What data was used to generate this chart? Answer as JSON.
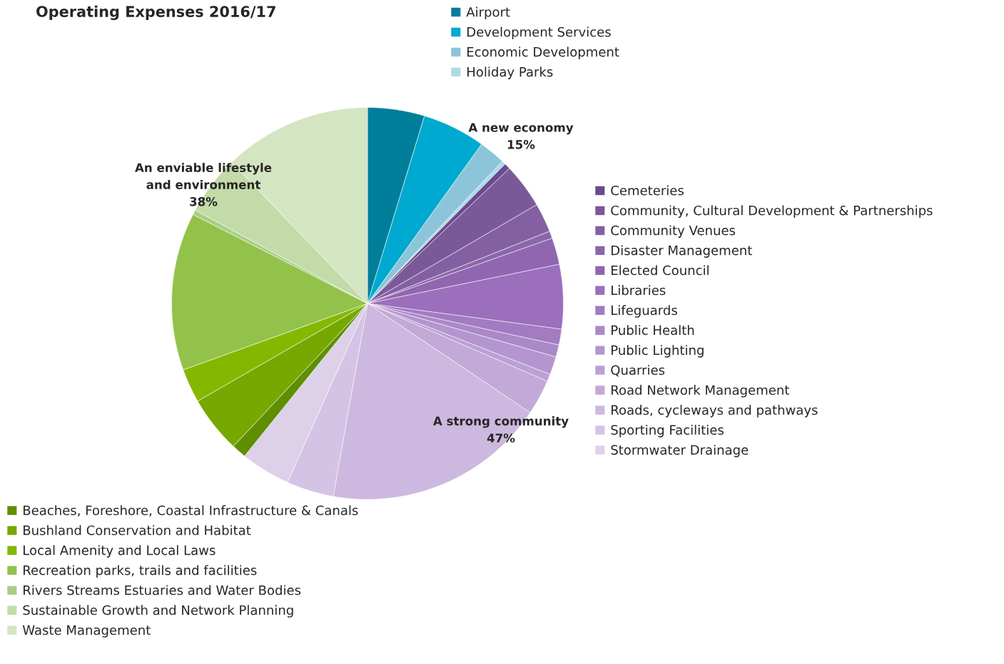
{
  "chart_data": {
    "type": "pie",
    "title": "Operating Expenses 2016/17",
    "categories": [
      "Airport",
      "Development Services",
      "Economic Development",
      "Holiday Parks",
      "Cemeteries",
      "Community, Cultural Development & Partnerships",
      "Community Venues",
      "Disaster Management",
      "Elected Council",
      "Libraries",
      "Lifeguards",
      "Public Health",
      "Public Lighting",
      "Quarries",
      "Road Network Management",
      "Roads, cycleways and pathways",
      "Sporting Facilities",
      "Stormwater Drainage",
      "Beaches, Foreshore, Coastal Infrastructure & Canals",
      "Bushland Conservation and Habitat",
      "Local Amenity and Local Laws",
      "Recreation parks, trails and facilities",
      "Rivers Streams Estuaries and Water Bodies",
      "Sustainable Growth and Network Planning",
      "Waste Management"
    ],
    "values": [
      4.7,
      5.2,
      2.2,
      0.3,
      0.5,
      3.7,
      2.4,
      0.6,
      2.2,
      5.3,
      1.3,
      1.0,
      1.5,
      0.6,
      2.9,
      18.4,
      3.9,
      4.1,
      1.2,
      4.7,
      2.8,
      13.0,
      0.4,
      4.9,
      12.2
    ],
    "colors": [
      "#007e9a",
      "#00a9cf",
      "#8cc5da",
      "#b0d9e8",
      "#6a4a8c",
      "#7b5999",
      "#8460a3",
      "#8a67aa",
      "#9066b1",
      "#9b6fbc",
      "#a27bc1",
      "#ab88c8",
      "#b495d0",
      "#bba0d4",
      "#c2a9d8",
      "#cdb8df",
      "#d4c3e4",
      "#ddd0e9",
      "#5e8f00",
      "#76a800",
      "#84b800",
      "#93c24a",
      "#a9cf84",
      "#c3dba8",
      "#d4e5c2"
    ],
    "annotations": [
      "A new economy\n15%",
      "A strong community\n47%",
      "An enviable lifestyle\nand environment\n38%"
    ],
    "legend": "right"
  }
}
